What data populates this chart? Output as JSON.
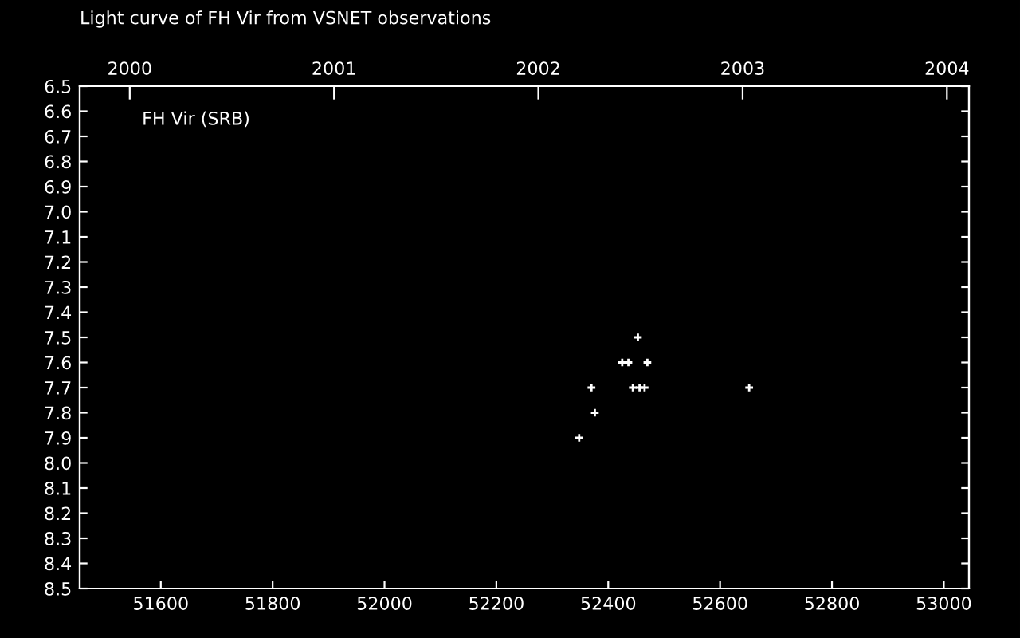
{
  "chart_data": {
    "type": "scatter",
    "title": "Light curve of FH Vir from VSNET observations",
    "annotations": [
      "FH Vir (SRB)"
    ],
    "x": [
      52348,
      52370,
      52376,
      52425,
      52436,
      52444,
      52453,
      52456,
      52465,
      52470,
      52652
    ],
    "series": [
      {
        "color": "#ffffff",
        "values": [
          7.9,
          7.7,
          7.8,
          7.6,
          7.6,
          7.7,
          7.5,
          7.7,
          7.7,
          7.6,
          7.7
        ]
      }
    ],
    "marker": "cross",
    "xlim": [
      51455,
      53045
    ],
    "xticks": [
      51600,
      51800,
      52000,
      52200,
      52400,
      52600,
      52800,
      53000
    ],
    "x2lim": [
      1999.755,
      2004.108
    ],
    "x2ticks": [
      2000,
      2001,
      2002,
      2003,
      2004
    ],
    "ylim": [
      8.5,
      6.5
    ],
    "yticks": [
      {
        "value": 6.5,
        "label": "6.5"
      },
      {
        "value": 6.6,
        "label": "6.6"
      },
      {
        "value": 6.7,
        "label": "6.7"
      },
      {
        "value": 6.8,
        "label": "6.8"
      },
      {
        "value": 6.9,
        "label": "6.9"
      },
      {
        "value": 7.0,
        "label": "7.0"
      },
      {
        "value": 7.1,
        "label": "7.1"
      },
      {
        "value": 7.2,
        "label": "7.2"
      },
      {
        "value": 7.3,
        "label": "7.3"
      },
      {
        "value": 7.4,
        "label": "7.4"
      },
      {
        "value": 7.5,
        "label": "7.5"
      },
      {
        "value": 7.6,
        "label": "7.6"
      },
      {
        "value": 7.7,
        "label": "7.7"
      },
      {
        "value": 7.8,
        "label": "7.8"
      },
      {
        "value": 7.9,
        "label": "7.9"
      },
      {
        "value": 8.0,
        "label": "8.0"
      },
      {
        "value": 8.1,
        "label": "8.1"
      },
      {
        "value": 8.2,
        "label": "8.2"
      },
      {
        "value": 8.3,
        "label": "8.3"
      },
      {
        "value": 8.4,
        "label": "8.4"
      },
      {
        "value": 8.5,
        "label": "8.5"
      }
    ],
    "grid": false
  }
}
